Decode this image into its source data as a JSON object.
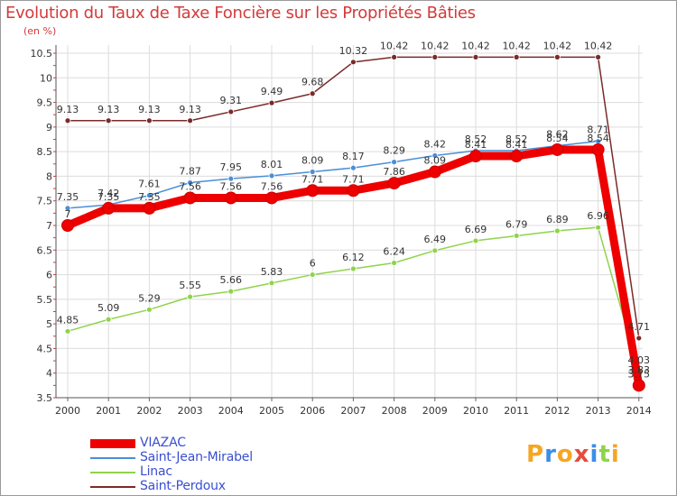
{
  "header": {
    "title": "Evolution du Taux de Taxe Foncière sur les Propriétés Bâties",
    "unit": "(en %)"
  },
  "chart_data": {
    "type": "line",
    "title": "Evolution du Taux de Taxe Foncière sur les Propriétés Bâties",
    "ylabel": "(en %)",
    "xlabel": "",
    "ylim": [
      3.5,
      10.5
    ],
    "yticks": [
      "3.5",
      "4",
      "4.5",
      "5",
      "5.5",
      "6",
      "6.5",
      "7",
      "7.5",
      "8",
      "8.5",
      "9",
      "9.5",
      "10",
      "10.5"
    ],
    "categories": [
      "2000",
      "2001",
      "2002",
      "2003",
      "2004",
      "2005",
      "2006",
      "2007",
      "2008",
      "2009",
      "2010",
      "2011",
      "2012",
      "2013",
      "2014"
    ],
    "grid": true,
    "legend_position": "bottom-left",
    "series": [
      {
        "name": "Saint-Perdoux",
        "color": "#7a2a2a",
        "values": [
          9.13,
          9.13,
          9.13,
          9.13,
          9.31,
          9.49,
          9.68,
          10.32,
          10.42,
          10.42,
          10.42,
          10.42,
          10.42,
          10.42,
          4.71
        ],
        "labels": [
          "9.13",
          "9.13",
          "9.13",
          "9.13",
          "9.31",
          "9.49",
          "9.68",
          "10.32",
          "10.42",
          "10.42",
          "10.42",
          "10.42",
          "10.42",
          "10.42",
          "4.71"
        ]
      },
      {
        "name": "Saint-Jean-Mirabel",
        "color": "#4a8fd8",
        "values": [
          7.35,
          7.42,
          7.61,
          7.87,
          7.95,
          8.01,
          8.09,
          8.17,
          8.29,
          8.42,
          8.52,
          8.52,
          8.62,
          8.71,
          3.83
        ],
        "labels": [
          "7.35",
          "7.42",
          "7.61",
          "7.87",
          "7.95",
          "8.01",
          "8.09",
          "8.17",
          "8.29",
          "8.42",
          "8.52",
          "8.52",
          "8.62",
          "8.71",
          "3.83"
        ]
      },
      {
        "name": "Linac",
        "color": "#8ed44a",
        "values": [
          4.85,
          5.09,
          5.29,
          5.55,
          5.66,
          5.83,
          6,
          6.12,
          6.24,
          6.49,
          6.69,
          6.79,
          6.89,
          6.96,
          4.03
        ],
        "labels": [
          "4.85",
          "5.09",
          "5.29",
          "5.55",
          "5.66",
          "5.83",
          "6",
          "6.12",
          "6.24",
          "6.49",
          "6.69",
          "6.79",
          "6.89",
          "6.96",
          "4.03"
        ]
      },
      {
        "name": "VIAZAC",
        "color": "#ee0000",
        "values": [
          7,
          7.35,
          7.35,
          7.56,
          7.56,
          7.56,
          7.71,
          7.71,
          7.86,
          8.09,
          8.41,
          8.41,
          8.54,
          8.54,
          3.75
        ],
        "labels": [
          "7",
          "7.35",
          "7.35",
          "7.56",
          "7.56",
          "7.56",
          "7.71",
          "7.71",
          "7.86",
          "8.09",
          "8.41",
          "8.41",
          "8.54",
          "8.54",
          "3.75"
        ]
      }
    ]
  },
  "legend": {
    "items": [
      "VIAZAC",
      "Saint-Jean-Mirabel",
      "Linac",
      "Saint-Perdoux"
    ]
  },
  "branding": {
    "logo_text": "Proxiti",
    "letters": [
      "P",
      "r",
      "o",
      "x",
      "i",
      "t",
      "i"
    ],
    "letter_colors": [
      "#f5a623",
      "#3a8ee8",
      "#f5a623",
      "#e84a3a",
      "#3a8ee8",
      "#8ed44a",
      "#f5a623"
    ]
  }
}
